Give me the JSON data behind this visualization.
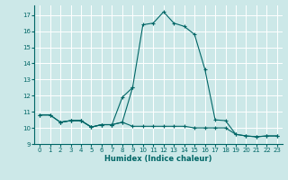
{
  "title": "",
  "xlabel": "Humidex (Indice chaleur)",
  "ylabel": "",
  "background_color": "#cce8e8",
  "grid_color": "#ffffff",
  "line_color": "#006666",
  "xlim": [
    -0.5,
    23.5
  ],
  "ylim": [
    9.0,
    17.6
  ],
  "yticks": [
    9,
    10,
    11,
    12,
    13,
    14,
    15,
    16,
    17
  ],
  "xticks": [
    0,
    1,
    2,
    3,
    4,
    5,
    6,
    7,
    8,
    9,
    10,
    11,
    12,
    13,
    14,
    15,
    16,
    17,
    18,
    19,
    20,
    21,
    22,
    23
  ],
  "line1_x": [
    0,
    1,
    2,
    3,
    4,
    5,
    6,
    7,
    8,
    9,
    10,
    11,
    12,
    13,
    14,
    15,
    16,
    17,
    18,
    19,
    20,
    21,
    22,
    23
  ],
  "line1_y": [
    10.8,
    10.8,
    10.35,
    10.45,
    10.45,
    10.05,
    10.2,
    10.2,
    10.35,
    12.5,
    16.4,
    16.5,
    17.2,
    16.5,
    16.3,
    15.8,
    13.65,
    10.5,
    10.45,
    9.6,
    9.5,
    9.45,
    9.5,
    9.5
  ],
  "line2_x": [
    0,
    1,
    2,
    3,
    4,
    5,
    6,
    7,
    8,
    9
  ],
  "line2_y": [
    10.8,
    10.8,
    10.35,
    10.45,
    10.45,
    10.05,
    10.2,
    10.2,
    11.9,
    12.5
  ],
  "line3_x": [
    2,
    3,
    4,
    5,
    6,
    7,
    8,
    9,
    10,
    11,
    12,
    13,
    14,
    15,
    16,
    17,
    18,
    19,
    20,
    21,
    22,
    23
  ],
  "line3_y": [
    10.35,
    10.45,
    10.45,
    10.05,
    10.2,
    10.2,
    10.35,
    10.1,
    10.1,
    10.1,
    10.1,
    10.1,
    10.1,
    10.0,
    10.0,
    10.0,
    10.0,
    9.6,
    9.5,
    9.45,
    9.5,
    9.5
  ]
}
